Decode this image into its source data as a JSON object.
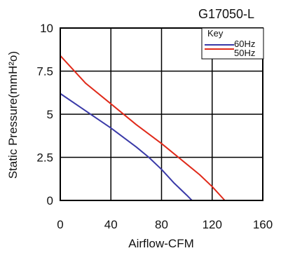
{
  "chart_data": {
    "type": "line",
    "title": "G17050-L",
    "xlabel": "Airflow-CFM",
    "ylabel": "Static Pressure(mmH²o)",
    "xlim": [
      0,
      160
    ],
    "ylim": [
      0,
      10
    ],
    "x_ticks": [
      "0",
      "40",
      "80",
      "120",
      "160"
    ],
    "y_ticks": [
      "0",
      "2.5",
      "5",
      "7.5",
      "10"
    ],
    "grid": true,
    "legend": {
      "title": "Key",
      "placement": "top-right"
    },
    "series": [
      {
        "name": "60Hz",
        "color": "#3a3aa8",
        "x": [
          0,
          20,
          40,
          60,
          70,
          80,
          90,
          100,
          104
        ],
        "y": [
          6.2,
          5.2,
          4.2,
          3.1,
          2.5,
          1.8,
          1.0,
          0.3,
          0
        ]
      },
      {
        "name": "50Hz",
        "color": "#e02a1a",
        "x": [
          0,
          20,
          40,
          60,
          80,
          100,
          110,
          120,
          130
        ],
        "y": [
          8.4,
          6.8,
          5.6,
          4.4,
          3.3,
          2.1,
          1.5,
          0.8,
          0
        ]
      }
    ]
  }
}
